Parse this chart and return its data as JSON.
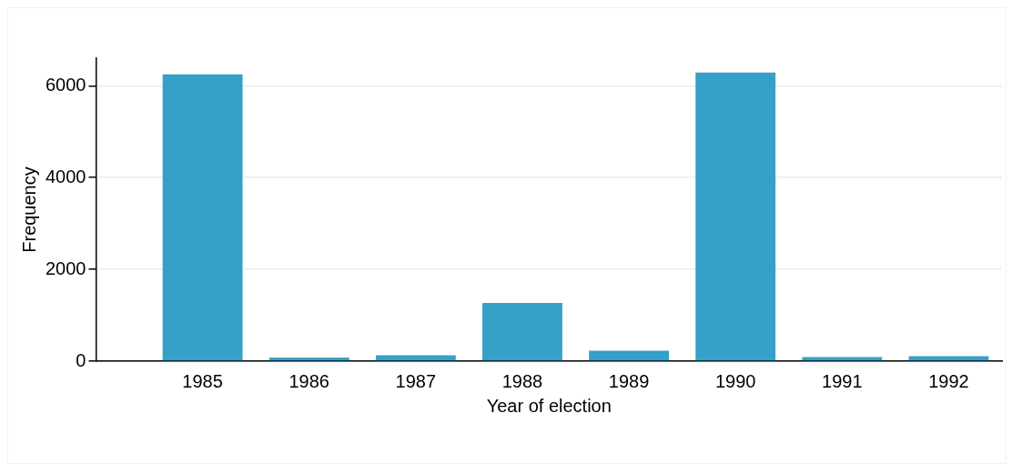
{
  "chart_data": {
    "type": "bar",
    "xlabel": "Year of election",
    "ylabel": "Frequency",
    "categories": [
      "1985",
      "1986",
      "1987",
      "1988",
      "1989",
      "1990",
      "1991",
      "1992"
    ],
    "values": [
      6250,
      80,
      130,
      1270,
      230,
      6290,
      90,
      110
    ],
    "color": "#35a0c8",
    "ylim": [
      0,
      6600
    ],
    "yticks": [
      0,
      2000,
      4000,
      6000
    ],
    "grid": "y"
  }
}
